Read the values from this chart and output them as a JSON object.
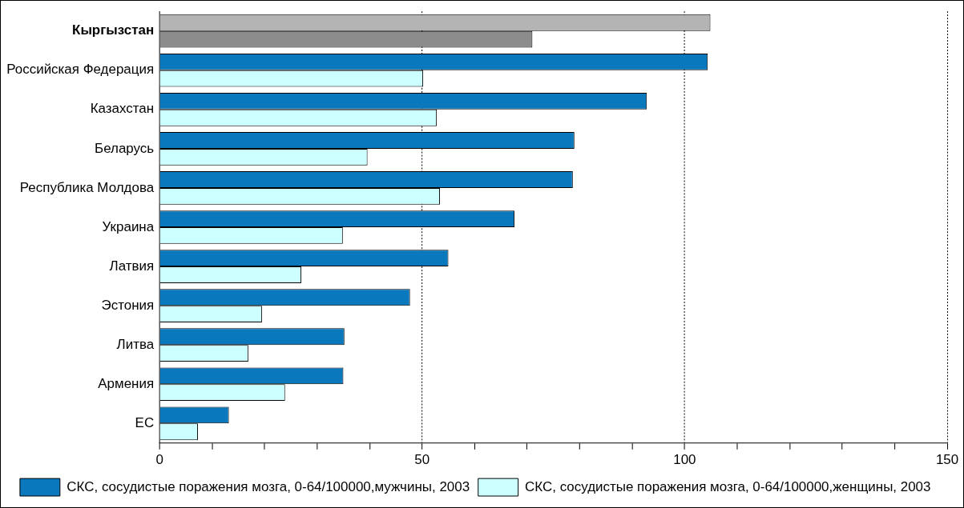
{
  "chart_data": {
    "type": "bar",
    "orientation": "horizontal",
    "categories": [
      "Кыргызстан",
      "Российская Федерация",
      "Казахстан",
      "Беларусь",
      "Республика Молдова",
      "Украина",
      "Латвия",
      "Эстония",
      "Литва",
      "Армения",
      "ЕС"
    ],
    "series": [
      {
        "name": "СКС, сосудистые поражения мозга, 0-64/100000,мужчины, 2003",
        "color": "#0a78bd",
        "colors": [
          "#b4b4b4",
          "#0a78bd",
          "#0a78bd",
          "#0a78bd",
          "#0a78bd",
          "#0a78bd",
          "#0a78bd",
          "#0a78bd",
          "#0a78bd",
          "#0a78bd",
          "#0a78bd"
        ],
        "values": [
          104.9,
          104.4,
          92.8,
          79.0,
          78.7,
          67.6,
          55.0,
          47.7,
          35.2,
          35.0,
          13.2
        ]
      },
      {
        "name": "СКС, сосудистые поражения мозга, 0-64/100000,женщины, 2003",
        "color": "#ccffff",
        "colors": [
          "#8c8c8c",
          "#ccffff",
          "#ccffff",
          "#ccffff",
          "#ccffff",
          "#ccffff",
          "#ccffff",
          "#ccffff",
          "#ccffff",
          "#ccffff",
          "#ccffff"
        ],
        "values": [
          71.0,
          50.2,
          52.8,
          39.6,
          53.4,
          34.9,
          27.0,
          19.5,
          16.9,
          23.9,
          7.3
        ]
      }
    ],
    "xlim": [
      0,
      150
    ],
    "xticks": [
      0,
      {
        "value": 10,
        "label": null
      },
      {
        "value": 20,
        "label": null
      },
      {
        "value": 30,
        "label": null
      },
      {
        "value": 40,
        "label": null
      },
      50,
      {
        "value": 60,
        "label": null
      },
      {
        "value": 70,
        "label": null
      },
      {
        "value": 80,
        "label": null
      },
      {
        "value": 90,
        "label": null
      },
      100,
      {
        "value": 110,
        "label": null
      },
      {
        "value": 120,
        "label": null
      },
      {
        "value": 130,
        "label": null
      },
      {
        "value": 140,
        "label": null
      },
      150
    ],
    "grid": "x",
    "legend": "bottom"
  }
}
